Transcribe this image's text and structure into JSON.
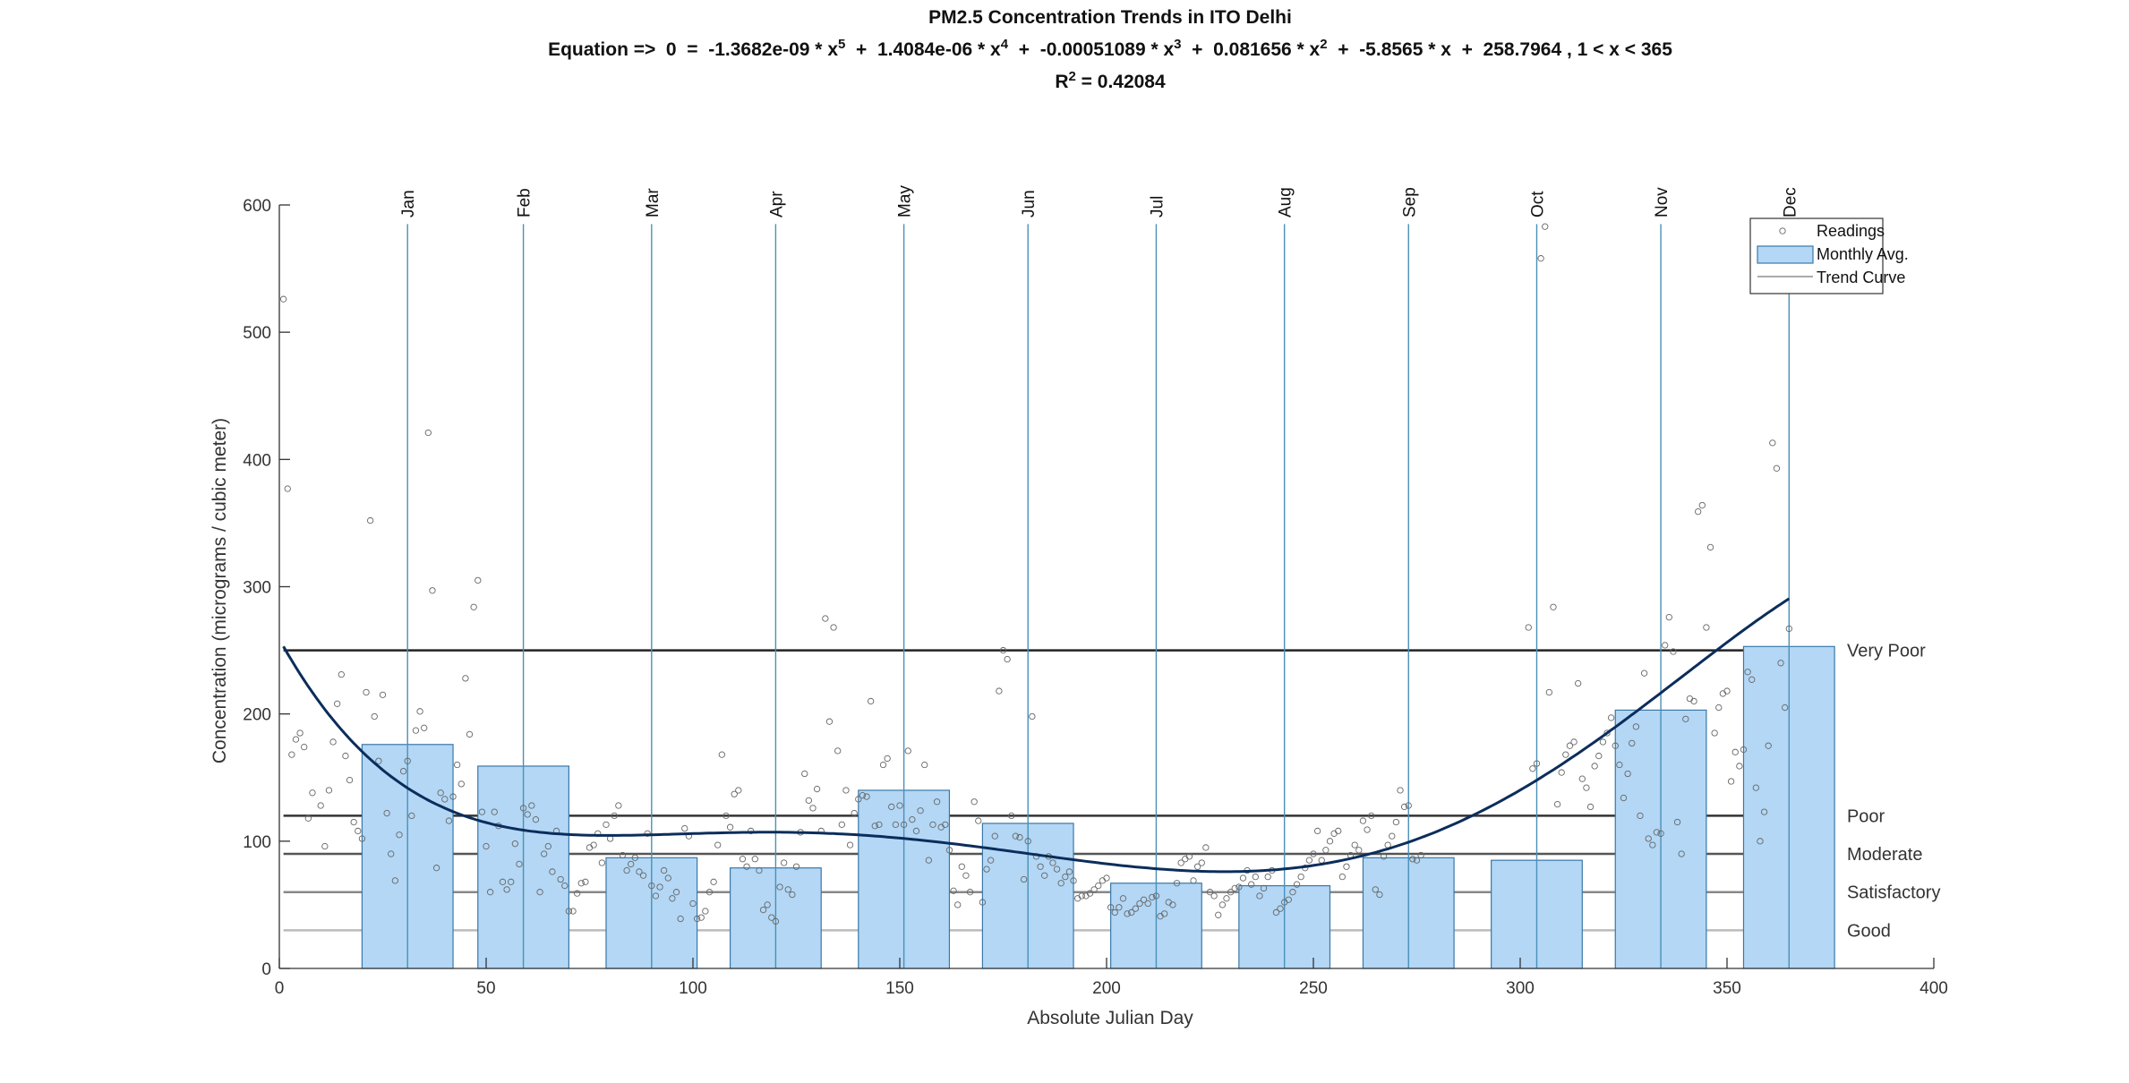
{
  "chart_data": {
    "type": "scatter",
    "title": "PM2.5 Concentration Trends in ITO Delhi",
    "equation": {
      "prefix": "Equation =>  0  =  ",
      "terms": [
        {
          "coef": "-1.3682e-09",
          "var": "x",
          "exp": "5"
        },
        {
          "coef": "1.4084e-06",
          "var": "x",
          "exp": "4"
        },
        {
          "coef": "-0.00051089",
          "var": "x",
          "exp": "3"
        },
        {
          "coef": "0.081656",
          "var": "x",
          "exp": "2"
        },
        {
          "coef": "-5.8565",
          "var": "x",
          "exp": ""
        },
        {
          "coef": "258.7964",
          "var": "",
          "exp": ""
        }
      ],
      "suffix": " , 1 < x < 365"
    },
    "r2": {
      "label": "R",
      "exp": "2",
      "value": " = 0.42084"
    },
    "xlabel": "Absolute Julian Day",
    "ylabel": "Concentration (micrograms / cubic meter)",
    "xlim": [
      0,
      400
    ],
    "ylim": [
      0,
      600
    ],
    "xticks": [
      0,
      50,
      100,
      150,
      200,
      250,
      300,
      350,
      400
    ],
    "yticks": [
      0,
      100,
      200,
      300,
      400,
      500,
      600
    ],
    "grid": false,
    "legend": {
      "placement": "top-right",
      "entries": [
        "Readings",
        "Monthly Avg.",
        "Trend Curve"
      ]
    },
    "colors": {
      "bar_fill": "#b3d7f5",
      "bar_edge": "#3a78a8",
      "readings": "#666666",
      "trend": "#0b2d5b",
      "month_line": "#4a90b8"
    },
    "months": [
      {
        "name": "Jan",
        "day": 31,
        "avg": 176
      },
      {
        "name": "Feb",
        "day": 59,
        "avg": 159
      },
      {
        "name": "Mar",
        "day": 90,
        "avg": 87
      },
      {
        "name": "Apr",
        "day": 120,
        "avg": 79
      },
      {
        "name": "May",
        "day": 151,
        "avg": 140
      },
      {
        "name": "Jun",
        "day": 181,
        "avg": 114
      },
      {
        "name": "Jul",
        "day": 212,
        "avg": 67
      },
      {
        "name": "Aug",
        "day": 243,
        "avg": 65
      },
      {
        "name": "Sep",
        "day": 273,
        "avg": 87
      },
      {
        "name": "Oct",
        "day": 304,
        "avg": 85
      },
      {
        "name": "Nov",
        "day": 334,
        "avg": 203
      },
      {
        "name": "Dec",
        "day": 365,
        "avg": 253
      }
    ],
    "categories": [
      {
        "label": "Very Poor",
        "value": 250,
        "color": "#222222"
      },
      {
        "label": "Poor",
        "value": 120,
        "color": "#333333"
      },
      {
        "label": "Moderate",
        "value": 90,
        "color": "#555555"
      },
      {
        "label": "Satisfactory",
        "value": 60,
        "color": "#888888"
      },
      {
        "label": "Good",
        "value": 30,
        "color": "#bbbbbb"
      }
    ],
    "trend_coefficients": [
      -1.3682e-09,
      1.4084e-06,
      -0.00051089,
      0.081656,
      -5.8565,
      258.7964
    ],
    "trend_range": [
      1,
      365
    ],
    "readings": [
      [
        1,
        526
      ],
      [
        2,
        377
      ],
      [
        3,
        168
      ],
      [
        4,
        180
      ],
      [
        5,
        185
      ],
      [
        6,
        174
      ],
      [
        7,
        118
      ],
      [
        8,
        138
      ],
      [
        10,
        128
      ],
      [
        11,
        96
      ],
      [
        12,
        140
      ],
      [
        13,
        178
      ],
      [
        14,
        208
      ],
      [
        15,
        231
      ],
      [
        16,
        167
      ],
      [
        17,
        148
      ],
      [
        18,
        115
      ],
      [
        19,
        108
      ],
      [
        20,
        102
      ],
      [
        21,
        217
      ],
      [
        22,
        352
      ],
      [
        23,
        198
      ],
      [
        24,
        163
      ],
      [
        25,
        215
      ],
      [
        26,
        122
      ],
      [
        27,
        90
      ],
      [
        28,
        69
      ],
      [
        29,
        105
      ],
      [
        30,
        155
      ],
      [
        31,
        163
      ],
      [
        32,
        120
      ],
      [
        33,
        187
      ],
      [
        34,
        202
      ],
      [
        35,
        189
      ],
      [
        36,
        421
      ],
      [
        37,
        297
      ],
      [
        38,
        79
      ],
      [
        39,
        138
      ],
      [
        40,
        133
      ],
      [
        41,
        116
      ],
      [
        42,
        135
      ],
      [
        43,
        160
      ],
      [
        44,
        145
      ],
      [
        45,
        228
      ],
      [
        46,
        184
      ],
      [
        47,
        284
      ],
      [
        48,
        305
      ],
      [
        49,
        123
      ],
      [
        50,
        96
      ],
      [
        51,
        60
      ],
      [
        52,
        123
      ],
      [
        53,
        112
      ],
      [
        54,
        68
      ],
      [
        55,
        62
      ],
      [
        56,
        68
      ],
      [
        57,
        98
      ],
      [
        58,
        82
      ],
      [
        59,
        126
      ],
      [
        60,
        121
      ],
      [
        61,
        128
      ],
      [
        62,
        117
      ],
      [
        63,
        60
      ],
      [
        64,
        90
      ],
      [
        65,
        96
      ],
      [
        66,
        76
      ],
      [
        67,
        108
      ],
      [
        68,
        70
      ],
      [
        69,
        65
      ],
      [
        70,
        45
      ],
      [
        71,
        45
      ],
      [
        72,
        59
      ],
      [
        73,
        67
      ],
      [
        74,
        68
      ],
      [
        75,
        95
      ],
      [
        76,
        97
      ],
      [
        77,
        106
      ],
      [
        78,
        83
      ],
      [
        79,
        113
      ],
      [
        80,
        102
      ],
      [
        81,
        120
      ],
      [
        82,
        128
      ],
      [
        83,
        89
      ],
      [
        84,
        77
      ],
      [
        85,
        82
      ],
      [
        86,
        87
      ],
      [
        87,
        76
      ],
      [
        88,
        73
      ],
      [
        89,
        106
      ],
      [
        90,
        65
      ],
      [
        91,
        57
      ],
      [
        92,
        64
      ],
      [
        93,
        77
      ],
      [
        94,
        71
      ],
      [
        95,
        55
      ],
      [
        96,
        60
      ],
      [
        97,
        39
      ],
      [
        98,
        110
      ],
      [
        99,
        104
      ],
      [
        100,
        51
      ],
      [
        101,
        39
      ],
      [
        102,
        40
      ],
      [
        103,
        45
      ],
      [
        104,
        60
      ],
      [
        105,
        68
      ],
      [
        106,
        97
      ],
      [
        107,
        168
      ],
      [
        108,
        120
      ],
      [
        109,
        111
      ],
      [
        110,
        137
      ],
      [
        111,
        140
      ],
      [
        112,
        86
      ],
      [
        113,
        80
      ],
      [
        114,
        108
      ],
      [
        115,
        86
      ],
      [
        116,
        77
      ],
      [
        117,
        46
      ],
      [
        118,
        50
      ],
      [
        119,
        40
      ],
      [
        120,
        37
      ],
      [
        121,
        64
      ],
      [
        122,
        83
      ],
      [
        123,
        62
      ],
      [
        124,
        58
      ],
      [
        125,
        80
      ],
      [
        126,
        107
      ],
      [
        127,
        153
      ],
      [
        128,
        132
      ],
      [
        129,
        126
      ],
      [
        130,
        141
      ],
      [
        131,
        108
      ],
      [
        132,
        275
      ],
      [
        133,
        194
      ],
      [
        134,
        268
      ],
      [
        135,
        171
      ],
      [
        136,
        113
      ],
      [
        137,
        140
      ],
      [
        138,
        97
      ],
      [
        139,
        122
      ],
      [
        140,
        133
      ],
      [
        141,
        136
      ],
      [
        142,
        135
      ],
      [
        143,
        210
      ],
      [
        144,
        112
      ],
      [
        145,
        113
      ],
      [
        146,
        160
      ],
      [
        147,
        165
      ],
      [
        148,
        127
      ],
      [
        149,
        113
      ],
      [
        150,
        128
      ],
      [
        151,
        113
      ],
      [
        152,
        171
      ],
      [
        153,
        117
      ],
      [
        154,
        108
      ],
      [
        155,
        124
      ],
      [
        156,
        160
      ],
      [
        157,
        85
      ],
      [
        158,
        113
      ],
      [
        159,
        131
      ],
      [
        160,
        111
      ],
      [
        161,
        113
      ],
      [
        162,
        93
      ],
      [
        163,
        61
      ],
      [
        164,
        50
      ],
      [
        165,
        80
      ],
      [
        166,
        73
      ],
      [
        167,
        60
      ],
      [
        168,
        131
      ],
      [
        169,
        116
      ],
      [
        170,
        52
      ],
      [
        171,
        78
      ],
      [
        172,
        85
      ],
      [
        173,
        104
      ],
      [
        174,
        218
      ],
      [
        175,
        250
      ],
      [
        176,
        243
      ],
      [
        177,
        120
      ],
      [
        178,
        104
      ],
      [
        179,
        103
      ],
      [
        180,
        70
      ],
      [
        181,
        100
      ],
      [
        182,
        198
      ],
      [
        183,
        88
      ],
      [
        184,
        80
      ],
      [
        185,
        73
      ],
      [
        186,
        88
      ],
      [
        187,
        83
      ],
      [
        188,
        78
      ],
      [
        189,
        67
      ],
      [
        190,
        72
      ],
      [
        191,
        76
      ],
      [
        192,
        69
      ],
      [
        193,
        55
      ],
      [
        194,
        57
      ],
      [
        195,
        57
      ],
      [
        196,
        59
      ],
      [
        197,
        62
      ],
      [
        198,
        65
      ],
      [
        199,
        69
      ],
      [
        200,
        71
      ],
      [
        201,
        48
      ],
      [
        202,
        44
      ],
      [
        203,
        48
      ],
      [
        204,
        55
      ],
      [
        205,
        43
      ],
      [
        206,
        44
      ],
      [
        207,
        47
      ],
      [
        208,
        51
      ],
      [
        209,
        54
      ],
      [
        210,
        51
      ],
      [
        211,
        56
      ],
      [
        212,
        57
      ],
      [
        213,
        41
      ],
      [
        214,
        43
      ],
      [
        215,
        52
      ],
      [
        216,
        50
      ],
      [
        217,
        67
      ],
      [
        218,
        83
      ],
      [
        219,
        86
      ],
      [
        220,
        88
      ],
      [
        221,
        69
      ],
      [
        222,
        80
      ],
      [
        223,
        83
      ],
      [
        224,
        95
      ],
      [
        225,
        60
      ],
      [
        226,
        57
      ],
      [
        227,
        42
      ],
      [
        228,
        50
      ],
      [
        229,
        55
      ],
      [
        230,
        60
      ],
      [
        231,
        63
      ],
      [
        232,
        64
      ],
      [
        233,
        71
      ],
      [
        234,
        77
      ],
      [
        235,
        66
      ],
      [
        236,
        72
      ],
      [
        237,
        57
      ],
      [
        238,
        63
      ],
      [
        239,
        72
      ],
      [
        240,
        77
      ],
      [
        241,
        44
      ],
      [
        242,
        47
      ],
      [
        243,
        52
      ],
      [
        244,
        54
      ],
      [
        245,
        60
      ],
      [
        246,
        66
      ],
      [
        247,
        72
      ],
      [
        248,
        79
      ],
      [
        249,
        85
      ],
      [
        250,
        90
      ],
      [
        251,
        108
      ],
      [
        252,
        85
      ],
      [
        253,
        93
      ],
      [
        254,
        100
      ],
      [
        255,
        106
      ],
      [
        256,
        108
      ],
      [
        257,
        72
      ],
      [
        258,
        80
      ],
      [
        259,
        89
      ],
      [
        260,
        97
      ],
      [
        261,
        93
      ],
      [
        262,
        116
      ],
      [
        263,
        109
      ],
      [
        264,
        120
      ],
      [
        265,
        62
      ],
      [
        266,
        58
      ],
      [
        267,
        88
      ],
      [
        268,
        97
      ],
      [
        269,
        104
      ],
      [
        270,
        115
      ],
      [
        271,
        140
      ],
      [
        272,
        127
      ],
      [
        273,
        128
      ],
      [
        274,
        86
      ],
      [
        275,
        85
      ],
      [
        276,
        89
      ],
      [
        302,
        268
      ],
      [
        303,
        157
      ],
      [
        304,
        161
      ],
      [
        305,
        558
      ],
      [
        306,
        583
      ],
      [
        307,
        217
      ],
      [
        308,
        284
      ],
      [
        309,
        129
      ],
      [
        310,
        154
      ],
      [
        311,
        168
      ],
      [
        312,
        175
      ],
      [
        313,
        178
      ],
      [
        314,
        224
      ],
      [
        315,
        149
      ],
      [
        316,
        142
      ],
      [
        317,
        127
      ],
      [
        318,
        159
      ],
      [
        319,
        167
      ],
      [
        320,
        178
      ],
      [
        321,
        185
      ],
      [
        322,
        197
      ],
      [
        323,
        175
      ],
      [
        324,
        160
      ],
      [
        325,
        134
      ],
      [
        326,
        153
      ],
      [
        327,
        177
      ],
      [
        328,
        190
      ],
      [
        329,
        120
      ],
      [
        330,
        232
      ],
      [
        331,
        102
      ],
      [
        332,
        97
      ],
      [
        333,
        107
      ],
      [
        334,
        106
      ],
      [
        335,
        254
      ],
      [
        336,
        276
      ],
      [
        337,
        249
      ],
      [
        338,
        115
      ],
      [
        339,
        90
      ],
      [
        340,
        196
      ],
      [
        341,
        212
      ],
      [
        342,
        210
      ],
      [
        343,
        359
      ],
      [
        344,
        364
      ],
      [
        345,
        268
      ],
      [
        346,
        331
      ],
      [
        347,
        185
      ],
      [
        348,
        205
      ],
      [
        349,
        216
      ],
      [
        350,
        218
      ],
      [
        351,
        147
      ],
      [
        352,
        170
      ],
      [
        353,
        159
      ],
      [
        354,
        172
      ],
      [
        355,
        233
      ],
      [
        356,
        227
      ],
      [
        357,
        142
      ],
      [
        358,
        100
      ],
      [
        359,
        123
      ],
      [
        360,
        175
      ],
      [
        361,
        413
      ],
      [
        362,
        393
      ],
      [
        363,
        240
      ],
      [
        364,
        205
      ],
      [
        365,
        267
      ]
    ]
  }
}
